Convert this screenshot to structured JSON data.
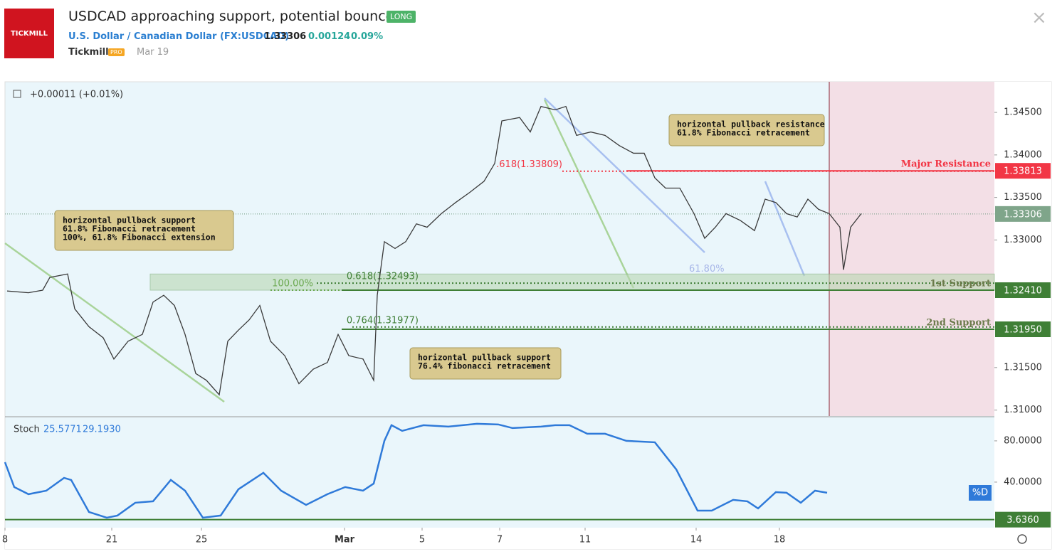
{
  "header": {
    "logo": "TICKMILL",
    "title": "USDCAD approaching support, potential bounce!",
    "badge": "LONG",
    "symbol": "U.S. Dollar / Canadian Dollar (FX:USDCAD)",
    "price": "1.33306",
    "change": "0.00124",
    "change_pct": "0.09%",
    "author": "Tickmill",
    "author_badge": "PRO",
    "date": "Mar 19"
  },
  "chart_data": [
    {
      "type": "line",
      "legend_text": "+0.00011 (+0.01%)",
      "color": "#3a3a3a",
      "x": [
        0.3,
        3.3,
        5.3,
        6.3,
        8.8,
        9.8,
        11.8,
        13.8,
        15.3,
        17.3,
        19.3,
        20.8,
        22.3,
        23.8,
        25.3,
        26.8,
        28.3,
        30.1,
        31.3,
        32.8,
        34.3,
        35.8,
        37.3,
        39.3,
        41.3,
        43.3,
        45.3,
        46.8,
        48.3,
        50.3,
        51.8,
        52.3,
        53.3,
        54.8,
        56.3,
        57.8,
        59.3,
        61.3,
        63.3,
        65.3,
        67.3,
        68.8,
        69.8,
        72.3,
        73.8,
        75.3,
        77.3,
        78.8,
        80.3,
        82.3,
        84.3,
        86.3,
        88.3,
        89.8,
        91.3,
        92.8,
        94.8,
        96.8,
        98.3,
        99.8,
        101.3,
        103.3,
        105.3,
        106.8,
        108.3,
        109.8,
        111.3,
        112.8,
        114.3,
        115.8,
        117.3,
        117.8,
        118.8,
        120.3
      ],
      "values": [
        1.324,
        1.3238,
        1.3241,
        1.3256,
        1.326,
        1.3219,
        1.3198,
        1.3185,
        1.316,
        1.3181,
        1.3189,
        1.3227,
        1.3235,
        1.3223,
        1.3189,
        1.3143,
        1.3135,
        1.3118,
        1.3181,
        1.3194,
        1.3206,
        1.3223,
        1.3181,
        1.3164,
        1.3131,
        1.3148,
        1.3156,
        1.3189,
        1.3164,
        1.316,
        1.3135,
        1.3235,
        1.3298,
        1.329,
        1.3298,
        1.3319,
        1.3315,
        1.3331,
        1.3344,
        1.3356,
        1.3369,
        1.339,
        1.344,
        1.3444,
        1.3427,
        1.3457,
        1.3453,
        1.3457,
        1.3423,
        1.3427,
        1.3423,
        1.3411,
        1.3402,
        1.3402,
        1.3373,
        1.3361,
        1.3361,
        1.3331,
        1.3302,
        1.3315,
        1.3331,
        1.3323,
        1.3311,
        1.3348,
        1.3344,
        1.3331,
        1.3327,
        1.3348,
        1.3336,
        1.3331,
        1.3315,
        1.3265,
        1.3315,
        1.3331
      ],
      "xlim": [
        0,
        139
      ],
      "ylim": [
        1.3093,
        1.3486
      ],
      "xticks": [
        {
          "value": 0,
          "label": "8"
        },
        {
          "value": 15,
          "label": "21"
        },
        {
          "value": 27.6,
          "label": "25"
        },
        {
          "value": 47.7,
          "label": "Mar"
        },
        {
          "value": 58.6,
          "label": "5"
        },
        {
          "value": 69.5,
          "label": "7"
        },
        {
          "value": 81.5,
          "label": "11"
        },
        {
          "value": 97.1,
          "label": "14"
        },
        {
          "value": 108.8,
          "label": "18"
        }
      ],
      "yticks": [
        {
          "value": 1.31,
          "label": "1.31000"
        },
        {
          "value": 1.315,
          "label": "1.31500"
        },
        {
          "value": 1.33,
          "label": "1.33000"
        },
        {
          "value": 1.335,
          "label": "1.33500"
        },
        {
          "value": 1.34,
          "label": "1.34000"
        },
        {
          "value": 1.345,
          "label": "1.34500"
        }
      ],
      "highlight_x": [
        115.8,
        139
      ],
      "support_zone": [
        1.3241,
        1.326
      ],
      "price_levels": [
        {
          "value": 1.33813,
          "label": "1.33813",
          "name": "Major Resistance",
          "color": "#f23645"
        },
        {
          "value": 1.3241,
          "label": "1.32410",
          "name": "1st Support",
          "color": "#3f7f36"
        },
        {
          "value": 1.3195,
          "label": "1.31950",
          "name": "2nd Support",
          "color": "#3f7f36"
        }
      ],
      "current_price": {
        "value": 1.33306,
        "label": "1.33306",
        "color": "#7fa58a"
      },
      "fib_levels": [
        {
          "value": 1.33809,
          "label": ".618(1.33809)",
          "color": "#f23645"
        },
        {
          "value": 1.32493,
          "label": "0.618(1.32493)",
          "color": "#3f7f36"
        },
        {
          "value": 1.3241,
          "label": "100.00%",
          "color": "#6aa84f"
        },
        {
          "value": 1.31977,
          "label": "0.764(1.31977)",
          "color": "#3f7f36"
        },
        {
          "value": 1.3258,
          "label": "61.80%",
          "color": "#a7b6e8"
        }
      ],
      "annotations": [
        [
          "horizontal pullback support",
          "61.8% Fibonacci retracement",
          "100%, 61.8% Fibonacci extension"
        ],
        [
          "horizontal pullback resistance",
          "61.8% Fibonacci retracement"
        ],
        [
          "horizontal pullback support",
          "76.4% fibonacci retracement"
        ]
      ]
    },
    {
      "type": "line",
      "legend_name": "Stoch",
      "legend_values": [
        "25.5771",
        "29.1930"
      ],
      "color": "#2f7ad9",
      "series_tag": "%D",
      "x": [
        0,
        1.3,
        3.3,
        5.8,
        8.3,
        9.3,
        11.8,
        14.3,
        15.8,
        18.3,
        20.8,
        23.3,
        25.3,
        27.8,
        30.3,
        32.8,
        36.3,
        38.8,
        42.3,
        45.3,
        47.8,
        50.3,
        51.8,
        53.3,
        54.3,
        55.8,
        58.8,
        62.3,
        66.3,
        69.3,
        71.3,
        75.3,
        77.3,
        79.3,
        81.8,
        84.3,
        87.3,
        91.3,
        94.3,
        97.3,
        99.3,
        102.3,
        104.3,
        105.8,
        108.3,
        109.8,
        111.8,
        113.8,
        115.5
      ],
      "values": [
        59.3,
        35.2,
        28.3,
        31.7,
        44.1,
        42.1,
        11.0,
        5.5,
        7.6,
        20.0,
        21.4,
        42.1,
        31.7,
        5.5,
        7.6,
        33.1,
        49.0,
        31.7,
        17.9,
        28.3,
        35.2,
        31.7,
        38.6,
        80.0,
        95.2,
        89.7,
        95.2,
        93.8,
        96.6,
        95.9,
        92.4,
        93.8,
        95.2,
        95.2,
        86.9,
        86.9,
        80.0,
        78.6,
        52.4,
        12.4,
        12.4,
        22.8,
        21.4,
        14.5,
        30.3,
        29.7,
        20.0,
        31.7,
        29.7
      ],
      "xlim": [
        0,
        139
      ],
      "ylim": [
        -2.8,
        102
      ],
      "yticks": [
        {
          "value": 80,
          "label": "80.0000"
        },
        {
          "value": 40,
          "label": "40.0000"
        }
      ],
      "level": {
        "value": 3.636,
        "label": "3.6360",
        "color": "#3f7f36"
      }
    }
  ]
}
